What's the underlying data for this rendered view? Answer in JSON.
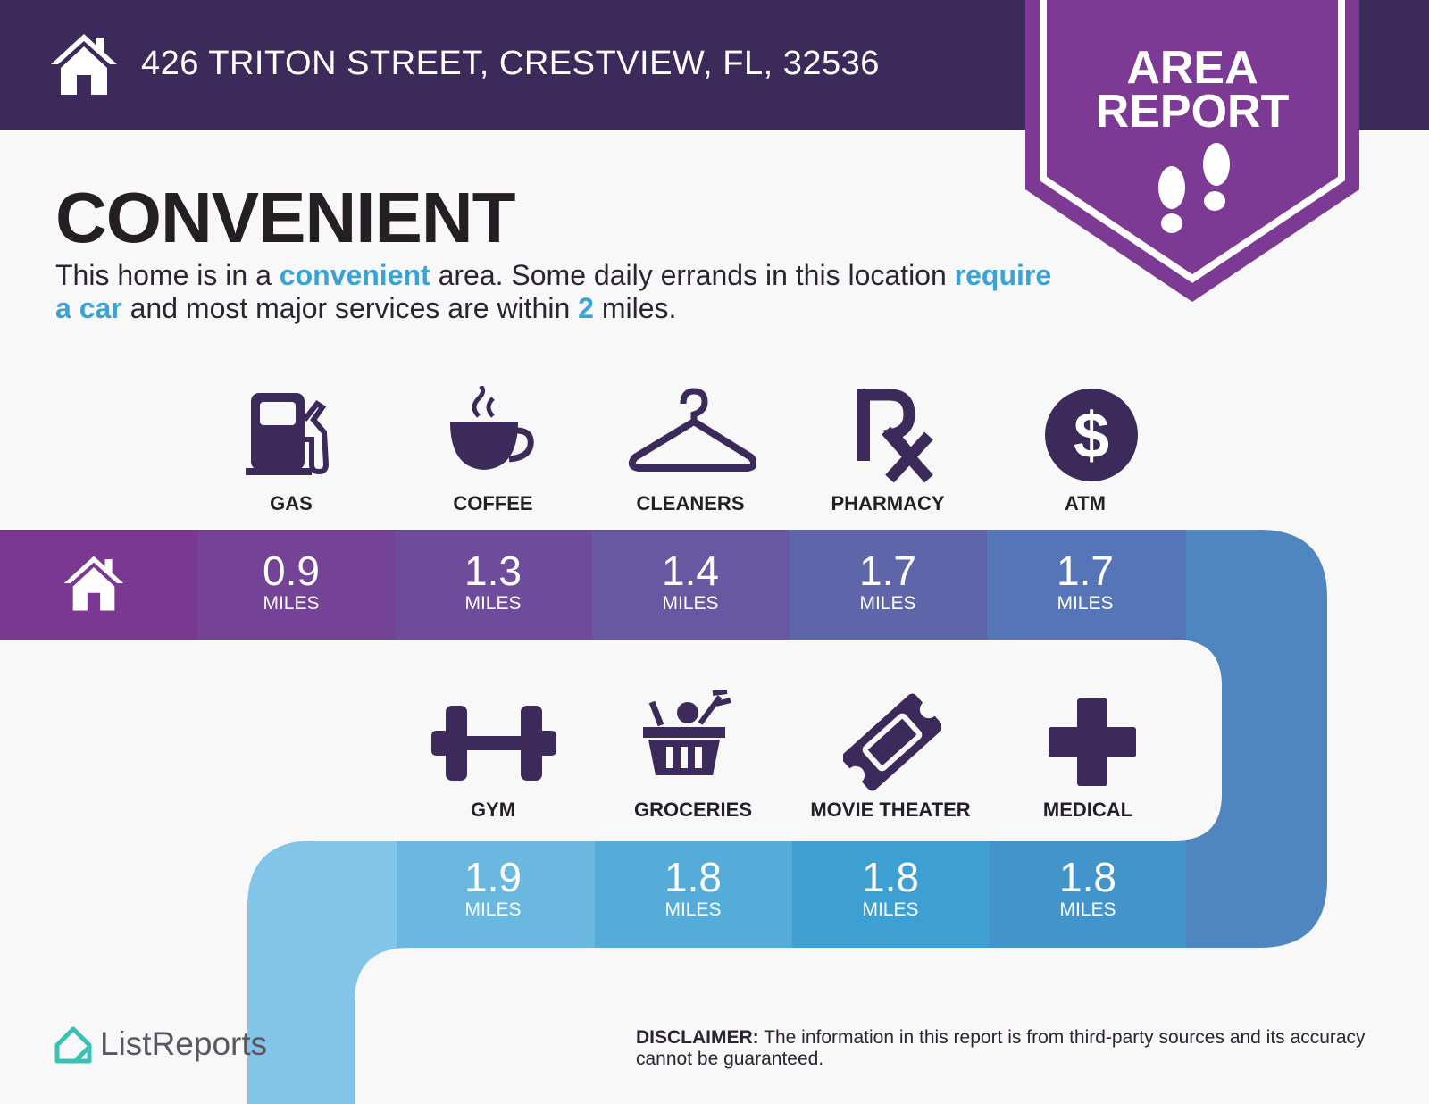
{
  "header": {
    "address": "426 TRITON STREET, CRESTVIEW, FL, 32536",
    "badge_line1": "AREA",
    "badge_line2": "REPORT",
    "colors": {
      "bar": "#3b2a5a",
      "badge": "#7d3a94"
    }
  },
  "main": {
    "title": "CONVENIENT",
    "desc": {
      "p1": "This home is in a ",
      "h1": "convenient",
      "p2": " area. Some daily errands in this location ",
      "h2": "require a car",
      "p3": " and most major services are within ",
      "h3": "2",
      "p4": " miles."
    }
  },
  "amenities": {
    "unit": "MILES",
    "row1": [
      {
        "icon": "gas-pump-icon",
        "label": "GAS",
        "distance": "0.9"
      },
      {
        "icon": "coffee-cup-icon",
        "label": "COFFEE",
        "distance": "1.3"
      },
      {
        "icon": "hanger-icon",
        "label": "CLEANERS",
        "distance": "1.4"
      },
      {
        "icon": "rx-icon",
        "label": "PHARMACY",
        "distance": "1.7"
      },
      {
        "icon": "dollar-icon",
        "label": "ATM",
        "distance": "1.7"
      }
    ],
    "row2": [
      {
        "icon": "dumbbell-icon",
        "label": "GYM",
        "distance": "1.9"
      },
      {
        "icon": "grocery-basket-icon",
        "label": "GROCERIES",
        "distance": "1.8"
      },
      {
        "icon": "ticket-icon",
        "label": "MOVIE THEATER",
        "distance": "1.8"
      },
      {
        "icon": "medical-cross-icon",
        "label": "MEDICAL",
        "distance": "1.8"
      }
    ]
  },
  "footer": {
    "logo": "ListReports",
    "disclaimer_label": "DISCLAIMER:",
    "disclaimer_text": " The information in this report is from third-party sources and its accuracy cannot be guaranteed."
  }
}
